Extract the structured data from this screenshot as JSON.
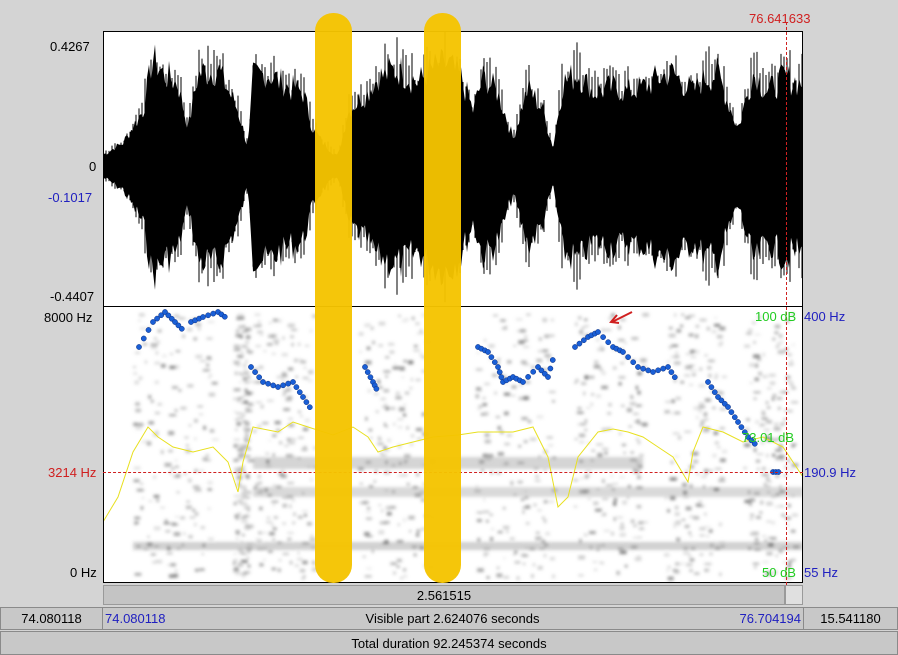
{
  "cursor": {
    "time": "76.641633"
  },
  "waveform": {
    "y_max": "0.4267",
    "y_zero": "0",
    "y_cursor": "-0.1017",
    "y_min": "-0.4407"
  },
  "spectrogram": {
    "freq_top": "8000 Hz",
    "freq_cursor": "3214 Hz",
    "freq_bottom": "0 Hz",
    "intensity_top": "100 dB",
    "intensity_mid": "73.01 dB",
    "intensity_bottom": "50 dB",
    "pitch_top": "400 Hz",
    "pitch_cursor": "190.9 Hz",
    "pitch_bottom": "55 Hz"
  },
  "selection": {
    "duration_label": "2.561515"
  },
  "visible_bar": {
    "left_total": "74.080118",
    "start": "74.080118",
    "label": "Visible part 2.624076 seconds",
    "end": "76.704194",
    "right_total": "15.541180"
  },
  "total_bar": {
    "label": "Total duration 92.245374 seconds"
  },
  "colors": {
    "highlight": "#f5c400",
    "cursor": "#d02020",
    "pitch": "#1a5fd6",
    "intensity": "#22cc22",
    "label_blue": "#2020c0"
  }
}
